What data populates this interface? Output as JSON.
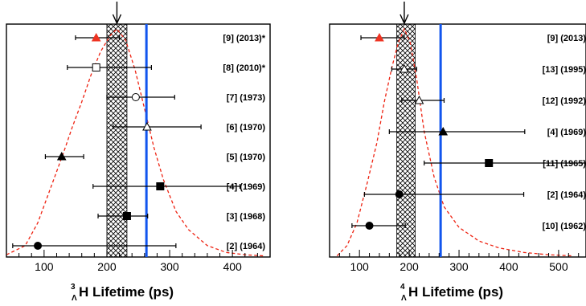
{
  "chart_data": [
    {
      "type": "scatter",
      "title": "",
      "xlabel": {
        "sup": "3",
        "sub": "Λ",
        "main": "H Lifetime (ps)"
      },
      "xlim": [
        40,
        460
      ],
      "xticks": [
        100,
        200,
        300,
        400
      ],
      "band": [
        200,
        232
      ],
      "reference_line": 263,
      "arrow_x": 216,
      "likelihood_curve": {
        "x": [
          40,
          70,
          90,
          110,
          130,
          145,
          160,
          175,
          190,
          205,
          216,
          230,
          245,
          260,
          275,
          290,
          310,
          330,
          360,
          390,
          420,
          450
        ],
        "y": [
          0.01,
          0.05,
          0.15,
          0.3,
          0.45,
          0.57,
          0.68,
          0.8,
          0.9,
          0.97,
          1.0,
          0.95,
          0.82,
          0.65,
          0.48,
          0.34,
          0.2,
          0.12,
          0.05,
          0.02,
          0.01,
          0.005
        ]
      },
      "measurements": [
        {
          "label": "[9] (2013)*",
          "value": 183,
          "low": 150,
          "high": 220,
          "marker": "triangle-filled",
          "color": "#ee3322"
        },
        {
          "label": "[8] (2010)*",
          "value": 183,
          "low": 137,
          "high": 271,
          "marker": "square-open",
          "color": "#000000"
        },
        {
          "label": "[7] (1973)",
          "value": 246,
          "low": 200,
          "high": 308,
          "marker": "circle-open",
          "color": "#000000"
        },
        {
          "label": "[6] (1970)",
          "value": 264,
          "low": 210,
          "high": 350,
          "marker": "triangle-open",
          "color": "#000000"
        },
        {
          "label": "[5] (1970)",
          "value": 128,
          "low": 102,
          "high": 163,
          "marker": "triangle-filled",
          "color": "#000000"
        },
        {
          "label": "[4] (1969)",
          "value": 285,
          "low": 178,
          "high": 412,
          "marker": "square-filled",
          "color": "#000000"
        },
        {
          "label": "[3] (1968)",
          "value": 232,
          "low": 186,
          "high": 265,
          "marker": "square-filled",
          "color": "#000000"
        },
        {
          "label": "[2] (1964)",
          "value": 90,
          "low": 50,
          "high": 310,
          "marker": "circle-filled",
          "color": "#000000"
        }
      ]
    },
    {
      "type": "scatter",
      "title": "",
      "xlabel": {
        "sup": "4",
        "sub": "Λ",
        "main": "H Lifetime (ps)"
      },
      "xlim": [
        40,
        555
      ],
      "xticks": [
        100,
        200,
        300,
        400,
        500
      ],
      "band": [
        175,
        212
      ],
      "reference_line": 263,
      "arrow_x": 190,
      "likelihood_curve": {
        "x": [
          55,
          75,
          95,
          115,
          135,
          150,
          165,
          178,
          190,
          202,
          215,
          230,
          250,
          270,
          300,
          340,
          380,
          430,
          480,
          530
        ],
        "y": [
          0.005,
          0.05,
          0.15,
          0.32,
          0.5,
          0.68,
          0.83,
          0.94,
          1.0,
          0.94,
          0.78,
          0.55,
          0.35,
          0.22,
          0.13,
          0.07,
          0.04,
          0.02,
          0.01,
          0.005
        ]
      },
      "measurements": [
        {
          "label": "[9] (2013)",
          "value": 140,
          "low": 103,
          "high": 190,
          "marker": "triangle-filled",
          "color": "#ee3322"
        },
        {
          "label": "[13] (1995)",
          "value": 190,
          "low": 165,
          "high": 215,
          "marker": "triangle-open",
          "color": "#000000"
        },
        {
          "label": "[12] (1992)",
          "value": 220,
          "low": 185,
          "high": 270,
          "marker": "triangle-open",
          "color": "#000000"
        },
        {
          "label": "[4] (1969)",
          "value": 268,
          "low": 160,
          "high": 432,
          "marker": "triangle-filled",
          "color": "#000000"
        },
        {
          "label": "[11] (1965)",
          "value": 360,
          "low": 230,
          "high": 555,
          "marker": "square-filled",
          "color": "#000000"
        },
        {
          "label": "[2] (1964)",
          "value": 180,
          "low": 110,
          "high": 430,
          "marker": "circle-filled",
          "color": "#000000"
        },
        {
          "label": "[10] (1962)",
          "value": 120,
          "low": 85,
          "high": 192,
          "marker": "circle-filled",
          "color": "#000000"
        }
      ]
    }
  ]
}
